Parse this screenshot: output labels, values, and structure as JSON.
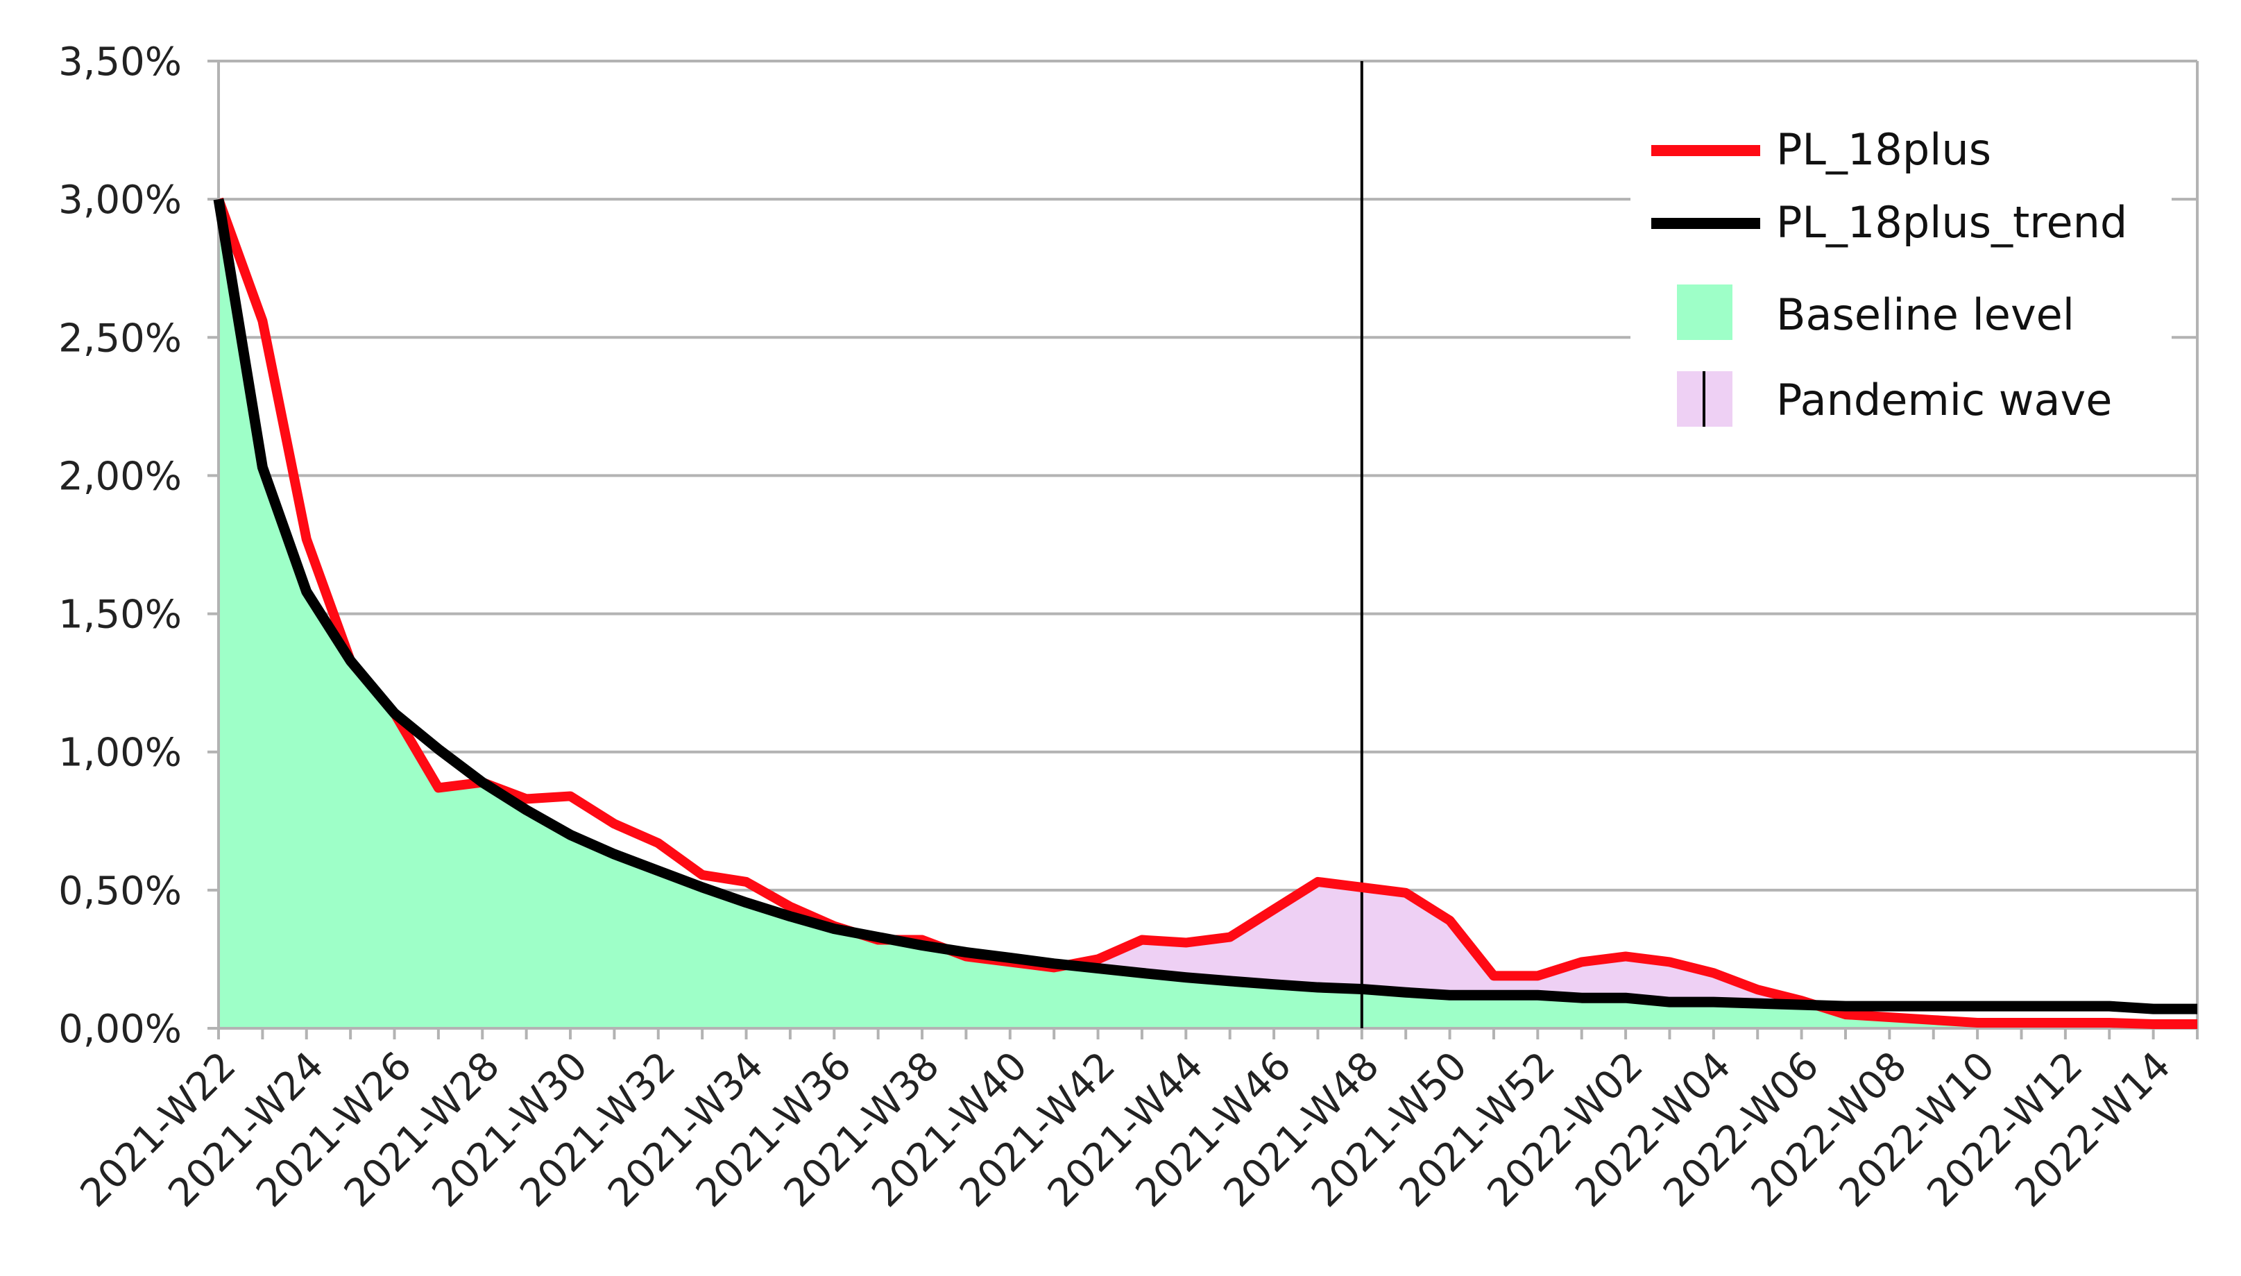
{
  "chart_data": {
    "type": "line",
    "title": "",
    "xlabel": "",
    "ylabel": "",
    "ylim": [
      0,
      3.5
    ],
    "y_ticks": [
      "0,00%",
      "0,50%",
      "1,00%",
      "1,50%",
      "2,00%",
      "2,50%",
      "3,00%",
      "3,50%"
    ],
    "y_tick_values": [
      0,
      0.5,
      1,
      1.5,
      2,
      2.5,
      3,
      3.5
    ],
    "x_tick_labels": [
      "2021-W22",
      "2021-W24",
      "2021-W26",
      "2021-W28",
      "2021-W30",
      "2021-W32",
      "2021-W34",
      "2021-W36",
      "2021-W38",
      "2021-W40",
      "2021-W42",
      "2021-W44",
      "2021-W46",
      "2021-W48",
      "2021-W50",
      "2021-W52",
      "2022-W02",
      "2022-W04",
      "2022-W06",
      "2022-W08",
      "2022-W10",
      "2022-W12",
      "2022-W14"
    ],
    "weeks_per_tick_label": 2,
    "grid": true,
    "legend_position": "top-right",
    "marker_line_at": "2021-W48",
    "pandemic_wave_range": [
      20,
      36
    ],
    "series": [
      {
        "name": "PL_18plus",
        "color": "#ff0a14",
        "values": [
          3.0,
          2.56,
          1.77,
          1.33,
          1.14,
          0.87,
          0.89,
          0.83,
          0.84,
          0.74,
          0.67,
          0.555,
          0.53,
          0.44,
          0.37,
          0.32,
          0.32,
          0.26,
          0.24,
          0.22,
          0.25,
          0.32,
          0.31,
          0.33,
          0.43,
          0.53,
          0.51,
          0.49,
          0.39,
          0.19,
          0.19,
          0.24,
          0.26,
          0.24,
          0.2,
          0.14,
          0.1,
          0.05,
          0.04,
          0.03,
          0.02,
          0.02,
          0.02,
          0.02,
          0.015,
          0.015
        ]
      },
      {
        "name": "PL_18plus_trend",
        "color": "#000000",
        "values": [
          3.0,
          2.03,
          1.58,
          1.33,
          1.14,
          1.01,
          0.89,
          0.79,
          0.7,
          0.63,
          0.57,
          0.51,
          0.455,
          0.405,
          0.36,
          0.33,
          0.3,
          0.275,
          0.255,
          0.234,
          0.217,
          0.2,
          0.184,
          0.171,
          0.159,
          0.148,
          0.142,
          0.13,
          0.12,
          0.12,
          0.12,
          0.11,
          0.11,
          0.095,
          0.095,
          0.09,
          0.085,
          0.08,
          0.08,
          0.08,
          0.08,
          0.08,
          0.08,
          0.08,
          0.07,
          0.07
        ]
      }
    ],
    "areas": [
      {
        "name": "Baseline level",
        "color": "#9effc8"
      },
      {
        "name": "Pandemic wave",
        "color": "#eed0f4"
      }
    ]
  }
}
